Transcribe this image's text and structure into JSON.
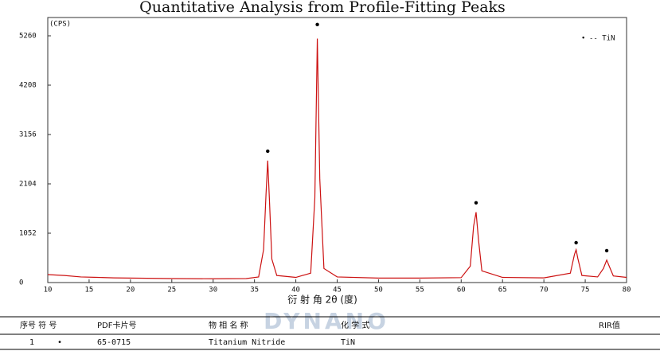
{
  "chart_data": {
    "type": "line",
    "title": "Quantitative Analysis from Profile-Fitting Peaks",
    "y_label": "(CPS)",
    "x_label": "衍 射 角 2θ (度)",
    "xlim": [
      10,
      80
    ],
    "xticks": [
      10,
      15,
      20,
      25,
      30,
      35,
      40,
      45,
      50,
      55,
      60,
      65,
      70,
      75,
      80
    ],
    "ylim": [
      0,
      5650
    ],
    "yticks": [
      0,
      1052,
      2104,
      3156,
      4208,
      5260
    ],
    "legend": {
      "symbol": "•",
      "label": "-- TiN"
    },
    "series": [
      {
        "name": "TiN",
        "color": "#cc1111",
        "x": [
          10,
          12,
          14,
          16,
          18,
          20,
          25,
          30,
          34,
          35.5,
          36.1,
          36.4,
          36.6,
          36.8,
          37.1,
          37.7,
          40,
          41.8,
          42.3,
          42.6,
          42.9,
          43.4,
          45,
          50,
          55,
          60,
          61.1,
          61.5,
          61.8,
          62.1,
          62.5,
          65,
          70,
          73.2,
          73.7,
          73.9,
          74.1,
          74.6,
          76.5,
          77.2,
          77.6,
          77.9,
          78.4,
          80
        ],
        "values": [
          170,
          150,
          120,
          110,
          100,
          95,
          85,
          80,
          85,
          120,
          700,
          1900,
          2600,
          1800,
          500,
          150,
          110,
          200,
          1800,
          5200,
          2200,
          300,
          120,
          95,
          95,
          105,
          350,
          1200,
          1500,
          900,
          250,
          110,
          100,
          200,
          600,
          700,
          520,
          150,
          120,
          300,
          480,
          350,
          140,
          110
        ]
      }
    ],
    "peak_markers": {
      "x": [
        36.6,
        42.6,
        61.8,
        73.9,
        77.6
      ],
      "y": [
        2800,
        5500,
        1700,
        850,
        680
      ]
    },
    "watermark": "DYNANO"
  },
  "table": {
    "headers": [
      "序号 符 号",
      "PDF卡片号",
      "物 相 名 称",
      "化 学 式",
      "RIR值"
    ],
    "rows": [
      [
        "1",
        "•",
        "65-0715",
        "Titanium Nitride",
        "TiN"
      ]
    ]
  }
}
